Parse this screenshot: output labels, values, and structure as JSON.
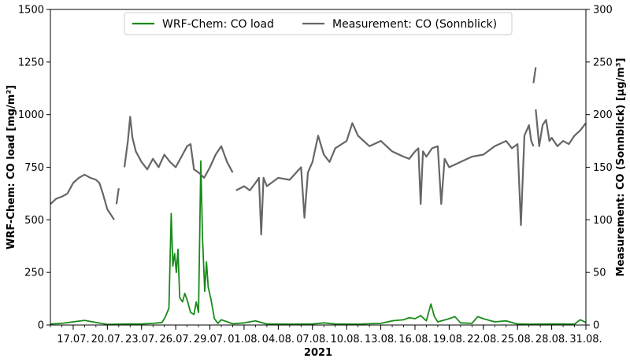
{
  "chart_data": {
    "type": "line",
    "xlabel": "2021",
    "ylabel_left": "WRF-Chem: CO load [mg/m²]",
    "ylabel_right": "Measurement: CO (Sonnblick) [µg/m³]",
    "x_range": [
      "2021-07-15",
      "2021-08-31"
    ],
    "x_ticks": [
      "17.07.",
      "20.07.",
      "23.07.",
      "26.07.",
      "29.07.",
      "01.08.",
      "04.08.",
      "07.08.",
      "10.08.",
      "13.08.",
      "16.08.",
      "19.08.",
      "22.08.",
      "25.08.",
      "28.08.",
      "31.08."
    ],
    "ylim_left": [
      0,
      1500
    ],
    "yticks_left": [
      "0",
      "250",
      "500",
      "750",
      "1000",
      "1250",
      "1500"
    ],
    "ylim_right": [
      0,
      300
    ],
    "yticks_right": [
      "0",
      "50",
      "100",
      "150",
      "200",
      "250",
      "300"
    ],
    "grid": false,
    "legend_position": "top-center",
    "series": [
      {
        "name": "WRF-Chem: CO load",
        "axis": "left",
        "color": "#1a8a1a",
        "points": [
          [
            "2021-07-15",
            5
          ],
          [
            "2021-07-16",
            8
          ],
          [
            "2021-07-17",
            15
          ],
          [
            "2021-07-18",
            22
          ],
          [
            "2021-07-19",
            12
          ],
          [
            "2021-07-20",
            3
          ],
          [
            "2021-07-21",
            4
          ],
          [
            "2021-07-22",
            5
          ],
          [
            "2021-07-23",
            5
          ],
          [
            "2021-07-24",
            8
          ],
          [
            "2021-07-24.8",
            12
          ],
          [
            "2021-07-25.1",
            40
          ],
          [
            "2021-07-25.4",
            80
          ],
          [
            "2021-07-25.6",
            530
          ],
          [
            "2021-07-25.75",
            280
          ],
          [
            "2021-07-25.9",
            340
          ],
          [
            "2021-07-26.05",
            250
          ],
          [
            "2021-07-26.2",
            360
          ],
          [
            "2021-07-26.35",
            130
          ],
          [
            "2021-07-26.6",
            110
          ],
          [
            "2021-07-26.8",
            150
          ],
          [
            "2021-07-27.0",
            120
          ],
          [
            "2021-07-27.3",
            60
          ],
          [
            "2021-07-27.6",
            50
          ],
          [
            "2021-07-27.8",
            110
          ],
          [
            "2021-07-28.0",
            60
          ],
          [
            "2021-07-28.2",
            780
          ],
          [
            "2021-07-28.35",
            420
          ],
          [
            "2021-07-28.55",
            160
          ],
          [
            "2021-07-28.7",
            300
          ],
          [
            "2021-07-28.85",
            180
          ],
          [
            "2021-07-29.1",
            120
          ],
          [
            "2021-07-29.4",
            30
          ],
          [
            "2021-07-29.7",
            8
          ],
          [
            "2021-07-30",
            25
          ],
          [
            "2021-07-31",
            6
          ],
          [
            "2021-08-01",
            10
          ],
          [
            "2021-08-02",
            20
          ],
          [
            "2021-08-03",
            5
          ],
          [
            "2021-08-05",
            4
          ],
          [
            "2021-08-07",
            5
          ],
          [
            "2021-08-08",
            10
          ],
          [
            "2021-08-09",
            5
          ],
          [
            "2021-08-11",
            4
          ],
          [
            "2021-08-13",
            8
          ],
          [
            "2021-08-14",
            20
          ],
          [
            "2021-08-15",
            25
          ],
          [
            "2021-08-15.5",
            35
          ],
          [
            "2021-08-16",
            30
          ],
          [
            "2021-08-16.5",
            45
          ],
          [
            "2021-08-17",
            20
          ],
          [
            "2021-08-17.4",
            100
          ],
          [
            "2021-08-17.7",
            40
          ],
          [
            "2021-08-18",
            15
          ],
          [
            "2021-08-19",
            30
          ],
          [
            "2021-08-19.5",
            40
          ],
          [
            "2021-08-20",
            10
          ],
          [
            "2021-08-21",
            8
          ],
          [
            "2021-08-21.5",
            40
          ],
          [
            "2021-08-22",
            30
          ],
          [
            "2021-08-23",
            15
          ],
          [
            "2021-08-24",
            20
          ],
          [
            "2021-08-25",
            5
          ],
          [
            "2021-08-26",
            4
          ],
          [
            "2021-08-28",
            5
          ],
          [
            "2021-08-29",
            5
          ],
          [
            "2021-08-30",
            4
          ],
          [
            "2021-08-30.5",
            25
          ],
          [
            "2021-08-31",
            12
          ]
        ]
      },
      {
        "name": "Measurement: CO (Sonnblick)",
        "axis": "right",
        "color": "#666666",
        "segments": [
          [
            [
              "2021-07-15",
              115
            ],
            [
              "2021-07-15.5",
              120
            ],
            [
              "2021-07-16",
              122
            ],
            [
              "2021-07-16.5",
              125
            ],
            [
              "2021-07-17",
              135
            ],
            [
              "2021-07-17.5",
              140
            ],
            [
              "2021-07-18",
              143
            ],
            [
              "2021-07-18.5",
              140
            ],
            [
              "2021-07-19",
              138
            ],
            [
              "2021-07-19.3",
              135
            ],
            [
              "2021-07-19.6",
              125
            ],
            [
              "2021-07-20",
              110
            ],
            [
              "2021-07-20.3",
              105
            ],
            [
              "2021-07-20.6",
              100
            ]
          ],
          [
            [
              "2021-07-20.8",
              115
            ],
            [
              "2021-07-21",
              130
            ]
          ],
          [
            [
              "2021-07-21.5",
              150
            ],
            [
              "2021-07-21.8",
              175
            ],
            [
              "2021-07-22",
              198
            ],
            [
              "2021-07-22.2",
              178
            ],
            [
              "2021-07-22.5",
              165
            ],
            [
              "2021-07-23",
              155
            ],
            [
              "2021-07-23.5",
              148
            ],
            [
              "2021-07-24",
              158
            ],
            [
              "2021-07-24.5",
              150
            ],
            [
              "2021-07-25",
              162
            ],
            [
              "2021-07-25.5",
              155
            ],
            [
              "2021-07-26",
              150
            ],
            [
              "2021-07-26.5",
              160
            ],
            [
              "2021-07-27",
              170
            ],
            [
              "2021-07-27.3",
              172
            ],
            [
              "2021-07-27.6",
              148
            ],
            [
              "2021-07-28",
              145
            ],
            [
              "2021-07-28.5",
              140
            ],
            [
              "2021-07-29",
              150
            ],
            [
              "2021-07-29.5",
              162
            ],
            [
              "2021-07-30",
              170
            ],
            [
              "2021-07-30.5",
              155
            ],
            [
              "2021-07-31",
              145
            ]
          ],
          [
            [
              "2021-07-31.3",
              128
            ],
            [
              "2021-08-01",
              132
            ],
            [
              "2021-08-01.5",
              128
            ],
            [
              "2021-08-02",
              135
            ],
            [
              "2021-08-02.3",
              140
            ],
            [
              "2021-08-02.5",
              86
            ],
            [
              "2021-08-02.7",
              140
            ],
            [
              "2021-08-03",
              132
            ],
            [
              "2021-08-04",
              140
            ],
            [
              "2021-08-05",
              138
            ],
            [
              "2021-08-06",
              150
            ],
            [
              "2021-08-06.3",
              102
            ],
            [
              "2021-08-06.6",
              145
            ],
            [
              "2021-08-07",
              155
            ],
            [
              "2021-08-07.5",
              180
            ],
            [
              "2021-08-08",
              162
            ],
            [
              "2021-08-08.5",
              155
            ],
            [
              "2021-08-09",
              168
            ],
            [
              "2021-08-10",
              175
            ],
            [
              "2021-08-10.5",
              192
            ],
            [
              "2021-08-11",
              180
            ],
            [
              "2021-08-12",
              170
            ],
            [
              "2021-08-13",
              175
            ],
            [
              "2021-08-14",
              165
            ],
            [
              "2021-08-15",
              160
            ],
            [
              "2021-08-15.5",
              158
            ],
            [
              "2021-08-16",
              165
            ],
            [
              "2021-08-16.3",
              168
            ],
            [
              "2021-08-16.5",
              115
            ],
            [
              "2021-08-16.7",
              165
            ],
            [
              "2021-08-17",
              160
            ],
            [
              "2021-08-17.5",
              168
            ],
            [
              "2021-08-18",
              170
            ],
            [
              "2021-08-18.3",
              115
            ],
            [
              "2021-08-18.6",
              158
            ],
            [
              "2021-08-19",
              150
            ],
            [
              "2021-08-20",
              155
            ],
            [
              "2021-08-21",
              160
            ],
            [
              "2021-08-22",
              162
            ],
            [
              "2021-08-23",
              170
            ],
            [
              "2021-08-24",
              175
            ],
            [
              "2021-08-24.5",
              168
            ],
            [
              "2021-08-25",
              172
            ],
            [
              "2021-08-25.3",
              95
            ],
            [
              "2021-08-25.6",
              180
            ],
            [
              "2021-08-26",
              190
            ],
            [
              "2021-08-26.2",
              175
            ],
            [
              "2021-08-26.4",
              170
            ]
          ],
          [
            [
              "2021-08-26.4",
              230
            ],
            [
              "2021-08-26.6",
              245
            ]
          ],
          [
            [
              "2021-08-26.6",
              205
            ],
            [
              "2021-08-26.9",
              170
            ],
            [
              "2021-08-27.2",
              190
            ],
            [
              "2021-08-27.5",
              195
            ],
            [
              "2021-08-27.8",
              175
            ],
            [
              "2021-08-28",
              178
            ],
            [
              "2021-08-28.5",
              170
            ],
            [
              "2021-08-29",
              175
            ],
            [
              "2021-08-29.5",
              172
            ],
            [
              "2021-08-30",
              180
            ],
            [
              "2021-08-30.5",
              185
            ],
            [
              "2021-08-31",
              192
            ]
          ]
        ]
      }
    ]
  }
}
